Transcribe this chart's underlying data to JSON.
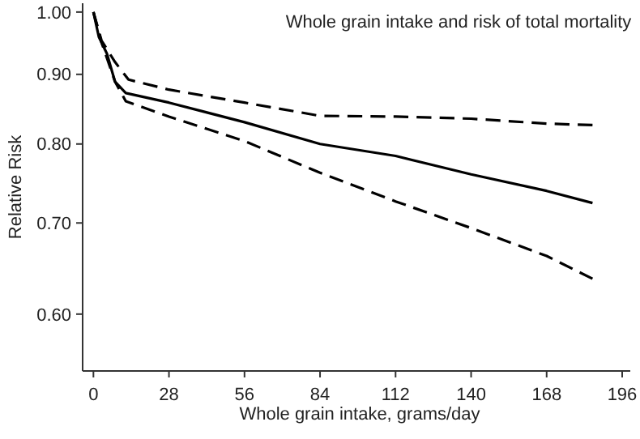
{
  "chart_data": {
    "type": "line",
    "title": "Whole grain intake and risk of total mortality",
    "xlabel": "Whole grain intake, grams/day",
    "ylabel": "Relative Risk",
    "log": "y",
    "xlim": [
      -4,
      199
    ],
    "xticks": [
      0,
      28,
      56,
      84,
      112,
      140,
      168,
      196
    ],
    "ylim": [
      0.545,
      1.015
    ],
    "yticks": [
      {
        "value": 0.6,
        "label": "0.60"
      },
      {
        "value": 0.7,
        "label": "0.70"
      },
      {
        "value": 0.8,
        "label": "0.80"
      },
      {
        "value": 0.9,
        "label": "0.90"
      },
      {
        "value": 1.0,
        "label": "1.00"
      }
    ],
    "grid": false,
    "marker": "none",
    "series": [
      {
        "color": "#000000",
        "line_style": "solid",
        "x": [
          0,
          2,
          5,
          8,
          12,
          28,
          56,
          84,
          112,
          140,
          168,
          185
        ],
        "values": [
          1.0,
          0.959,
          0.932,
          0.889,
          0.872,
          0.858,
          0.83,
          0.8,
          0.784,
          0.76,
          0.739,
          0.724
        ]
      },
      {
        "color": "#000000",
        "line_style": "dashed",
        "x": [
          0,
          3,
          8,
          13,
          28,
          56,
          84,
          112,
          140,
          168,
          185
        ],
        "values": [
          1.0,
          0.953,
          0.919,
          0.892,
          0.877,
          0.858,
          0.839,
          0.838,
          0.835,
          0.828,
          0.826
        ]
      },
      {
        "color": "#000000",
        "line_style": "dashed",
        "x": [
          0,
          3,
          8,
          12,
          28,
          56,
          84,
          112,
          140,
          168,
          185
        ],
        "values": [
          1.0,
          0.95,
          0.889,
          0.86,
          0.838,
          0.804,
          0.762,
          0.726,
          0.694,
          0.662,
          0.637
        ]
      }
    ]
  }
}
